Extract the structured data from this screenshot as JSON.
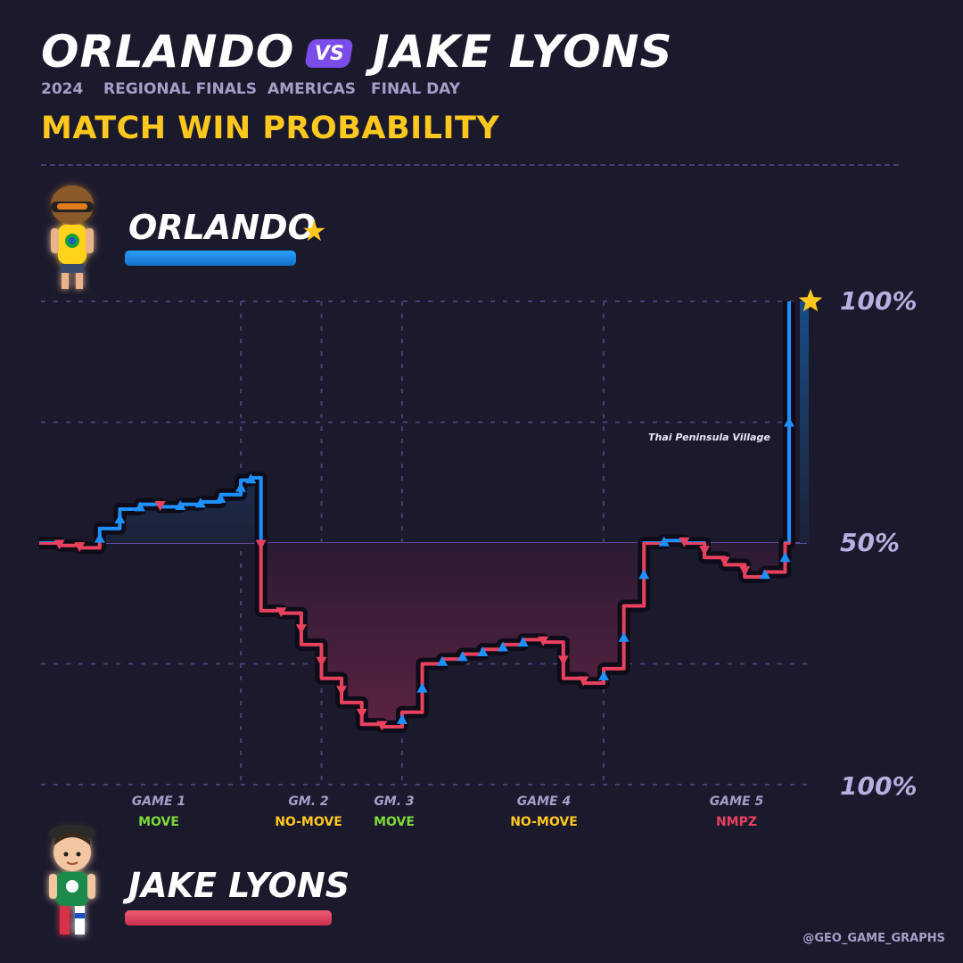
{
  "header": {
    "player_one": "ORLANDO",
    "vs_label": "VS",
    "player_two": "JAKE LYONS",
    "meta": [
      "2024",
      "REGIONAL FINALS",
      "AMERICAS",
      "FINAL DAY"
    ],
    "subtitle": "MATCH WIN PROBABILITY"
  },
  "players": {
    "top": {
      "name": "ORLANDO",
      "winner_star": "★",
      "color": "#1e90ff",
      "avatar_icon": "orlando-avatar-icon"
    },
    "bottom": {
      "name": "JAKE LYONS",
      "color": "#e8415e",
      "avatar_icon": "jake-lyons-avatar-icon"
    }
  },
  "credit": "@GEO_GAME_GRAPHS",
  "colors": {
    "background": "#1b1a2d",
    "orlando": "#1e90ff",
    "jake": "#e8415e",
    "accent": "#ffc81e",
    "grid": "#463f76",
    "game_type_move": "#7ddc3a",
    "game_type_nomove": "#ffc81e",
    "game_type_nmpz": "#e8415e"
  },
  "chart_data": {
    "type": "line",
    "step": true,
    "y_meaning": "Orlando match win probability (%)",
    "ylim": [
      0,
      100
    ],
    "y_tick_labels": [
      {
        "value": 100,
        "label": "100%"
      },
      {
        "value": 50,
        "label": "50%"
      },
      {
        "value": 0,
        "label": "100%"
      }
    ],
    "grid": true,
    "games": [
      {
        "label": "GAME 1",
        "type": "MOVE",
        "rounds": [
          0,
          10
        ]
      },
      {
        "label": "GM. 2",
        "type": "NO-MOVE",
        "rounds": [
          10,
          14
        ]
      },
      {
        "label": "GM. 3",
        "type": "MOVE",
        "rounds": [
          14,
          18
        ]
      },
      {
        "label": "GAME 4",
        "type": "NO-MOVE",
        "rounds": [
          18,
          28
        ]
      },
      {
        "label": "GAME 5",
        "type": "NMPZ",
        "rounds": [
          28,
          35
        ]
      }
    ],
    "series": [
      {
        "points": [
          [
            0,
            50
          ],
          [
            1,
            49.5
          ],
          [
            2,
            49
          ],
          [
            3,
            53
          ],
          [
            4,
            57
          ],
          [
            5,
            58
          ],
          [
            6,
            57.5
          ],
          [
            7,
            58
          ],
          [
            8,
            58.5
          ],
          [
            9,
            60
          ],
          [
            10,
            63
          ],
          [
            10.5,
            63.5
          ],
          [
            11,
            36
          ],
          [
            12,
            35.5
          ],
          [
            13,
            29
          ],
          [
            14,
            22
          ],
          [
            15,
            17
          ],
          [
            16,
            12.5
          ],
          [
            17,
            12
          ],
          [
            18,
            15
          ],
          [
            19,
            25
          ],
          [
            20,
            26
          ],
          [
            21,
            27
          ],
          [
            22,
            28
          ],
          [
            23,
            29
          ],
          [
            24,
            30
          ],
          [
            25,
            29.5
          ],
          [
            26,
            22
          ],
          [
            27,
            21
          ],
          [
            28,
            24
          ],
          [
            29,
            37
          ],
          [
            30,
            50
          ],
          [
            31,
            50.5
          ],
          [
            32,
            50
          ],
          [
            33,
            47
          ],
          [
            34,
            45.5
          ],
          [
            35,
            43
          ],
          [
            36,
            44
          ],
          [
            37,
            50
          ],
          [
            37.2,
            100
          ]
        ]
      }
    ],
    "annotations": [
      {
        "text": "Thai Peninsula Village",
        "x": 37,
        "y": 71
      }
    ]
  }
}
